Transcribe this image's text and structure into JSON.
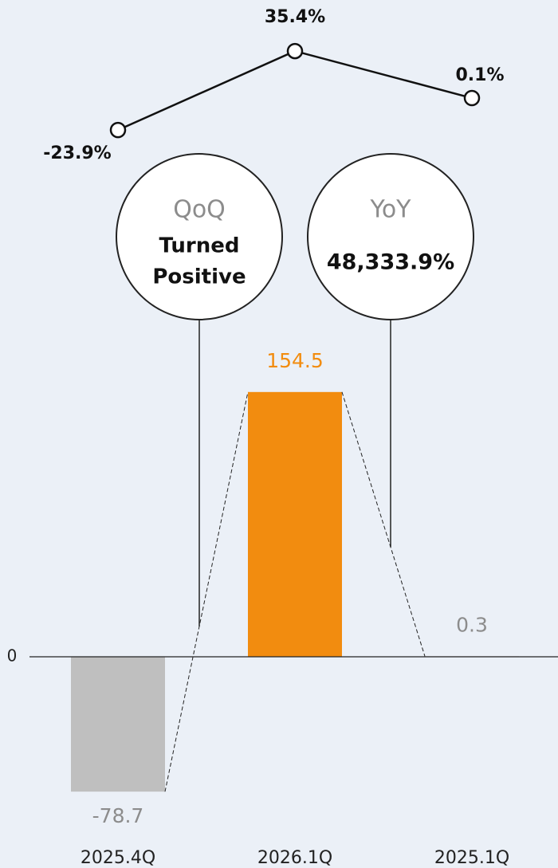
{
  "chart_data": {
    "type": "bar",
    "categories": [
      "2025.4Q",
      "2026.1Q",
      "2025.1Q"
    ],
    "values": [
      -78.7,
      154.5,
      0.3
    ],
    "colors": [
      "#bfbfbf",
      "#f28c0f",
      "#bfbfbf"
    ],
    "label_colors": [
      "#8c8c8c",
      "#f28c0f",
      "#8c8c8c"
    ],
    "ylim": [
      -100,
      200
    ],
    "yticks": [
      0
    ],
    "line": {
      "axis": "y2",
      "values": [
        -23.9,
        35.4,
        0.1
      ],
      "value_labels": [
        "-23.9%",
        "35.4%",
        "0.1%"
      ],
      "color": "#111111"
    },
    "y2lim": [
      -40,
      60
    ],
    "annotations": [
      {
        "title": "QoQ",
        "text": [
          "Turned",
          "Positive"
        ]
      },
      {
        "title": "YoY",
        "text": [
          "48,333.9%"
        ]
      }
    ]
  }
}
